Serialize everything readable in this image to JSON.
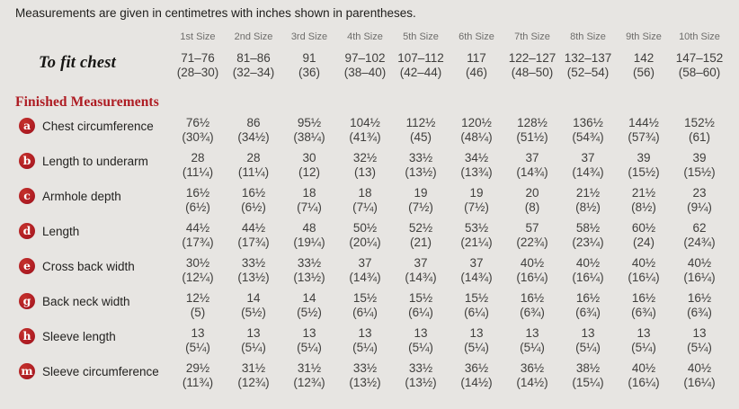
{
  "title": "Measurements are given in centimetres with inches shown in parentheses.",
  "colors": {
    "accent_red": "#ae1c23",
    "background": "#e7e5e2",
    "header_gray": "#6e6d6b",
    "value_gray": "#3f3e3c"
  },
  "table": {
    "size_headers": [
      "1st Size",
      "2nd Size",
      "3rd Size",
      "4th Size",
      "5th Size",
      "6th Size",
      "7th Size",
      "8th Size",
      "9th Size",
      "10th Size"
    ],
    "to_fit_chest": {
      "label": "To fit chest",
      "cm": [
        "71–76",
        "81–86",
        "91",
        "97–102",
        "107–112",
        "117",
        "122–127",
        "132–137",
        "142",
        "147–152"
      ],
      "inches": [
        "(28–30)",
        "(32–34)",
        "(36)",
        "(38–40)",
        "(42–44)",
        "(46)",
        "(48–50)",
        "(52–54)",
        "(56)",
        "(58–60)"
      ]
    },
    "section_heading": "Finished Measurements",
    "rows": [
      {
        "key": "a",
        "label": "Chest circumference",
        "cm": [
          "76½",
          "86",
          "95½",
          "104½",
          "112½",
          "120½",
          "128½",
          "136½",
          "144½",
          "152½"
        ],
        "inches": [
          "(30¾)",
          "(34½)",
          "(38¼)",
          "(41¾)",
          "(45)",
          "(48¼)",
          "(51½)",
          "(54¾)",
          "(57¾)",
          "(61)"
        ]
      },
      {
        "key": "b",
        "label": "Length to underarm",
        "cm": [
          "28",
          "28",
          "30",
          "32½",
          "33½",
          "34½",
          "37",
          "37",
          "39",
          "39"
        ],
        "inches": [
          "(11¼)",
          "(11¼)",
          "(12)",
          "(13)",
          "(13½)",
          "(13¾)",
          "(14¾)",
          "(14¾)",
          "(15½)",
          "(15½)"
        ]
      },
      {
        "key": "c",
        "label": "Armhole depth",
        "cm": [
          "16½",
          "16½",
          "18",
          "18",
          "19",
          "19",
          "20",
          "21½",
          "21½",
          "23"
        ],
        "inches": [
          "(6½)",
          "(6½)",
          "(7¼)",
          "(7¼)",
          "(7½)",
          "(7½)",
          "(8)",
          "(8½)",
          "(8½)",
          "(9¼)"
        ]
      },
      {
        "key": "d",
        "label": "Length",
        "cm": [
          "44½",
          "44½",
          "48",
          "50½",
          "52½",
          "53½",
          "57",
          "58½",
          "60½",
          "62"
        ],
        "inches": [
          "(17¾)",
          "(17¾)",
          "(19¼)",
          "(20¼)",
          "(21)",
          "(21¼)",
          "(22¾)",
          "(23¼)",
          "(24)",
          "(24¾)"
        ]
      },
      {
        "key": "e",
        "label": "Cross back width",
        "cm": [
          "30½",
          "33½",
          "33½",
          "37",
          "37",
          "37",
          "40½",
          "40½",
          "40½",
          "40½"
        ],
        "inches": [
          "(12¼)",
          "(13½)",
          "(13½)",
          "(14¾)",
          "(14¾)",
          "(14¾)",
          "(16¼)",
          "(16¼)",
          "(16¼)",
          "(16¼)"
        ]
      },
      {
        "key": "g",
        "label": "Back neck width",
        "cm": [
          "12½",
          "14",
          "14",
          "15½",
          "15½",
          "15½",
          "16½",
          "16½",
          "16½",
          "16½"
        ],
        "inches": [
          "(5)",
          "(5½)",
          "(5½)",
          "(6¼)",
          "(6¼)",
          "(6¼)",
          "(6¾)",
          "(6¾)",
          "(6¾)",
          "(6¾)"
        ]
      },
      {
        "key": "h",
        "label": "Sleeve length",
        "cm": [
          "13",
          "13",
          "13",
          "13",
          "13",
          "13",
          "13",
          "13",
          "13",
          "13"
        ],
        "inches": [
          "(5¼)",
          "(5¼)",
          "(5¼)",
          "(5¼)",
          "(5¼)",
          "(5¼)",
          "(5¼)",
          "(5¼)",
          "(5¼)",
          "(5¼)"
        ]
      },
      {
        "key": "m",
        "label": "Sleeve circumference",
        "cm": [
          "29½",
          "31½",
          "31½",
          "33½",
          "33½",
          "36½",
          "36½",
          "38½",
          "40½",
          "40½"
        ],
        "inches": [
          "(11¾)",
          "(12¾)",
          "(12¾)",
          "(13½)",
          "(13½)",
          "(14½)",
          "(14½)",
          "(15¼)",
          "(16¼)",
          "(16¼)"
        ]
      }
    ]
  }
}
